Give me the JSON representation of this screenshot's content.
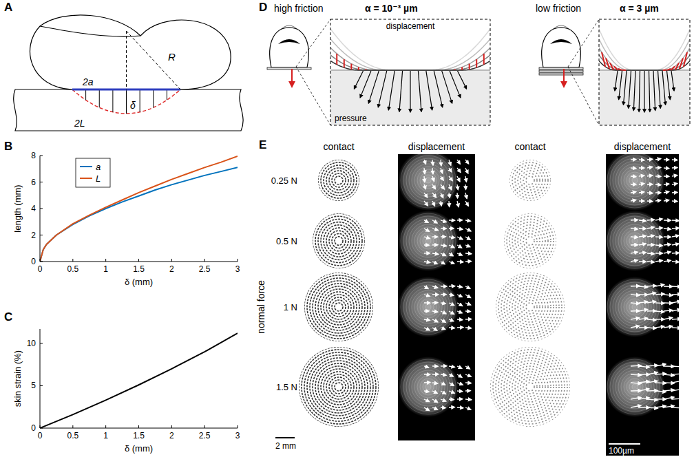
{
  "panels": {
    "letters": [
      "A",
      "B",
      "C",
      "D",
      "E"
    ],
    "A": {
      "contact_width": "2a",
      "indentation": "δ",
      "radius": "R",
      "arc_length": "2L"
    },
    "D": [
      {
        "title": "high friction",
        "alpha": "α = 10⁻³ µm",
        "displacement": "displacement",
        "pressure": "pressure"
      },
      {
        "title": "low friction",
        "alpha": "α = 3 µm"
      }
    ],
    "E": {
      "columns": [
        "contact",
        "displacement",
        "contact",
        "displacement"
      ],
      "rows": [
        "0.25 N",
        "0.5 N",
        "1 N",
        "1.5 N"
      ],
      "y_label": "normal force",
      "scale_bars": [
        "2 mm",
        "100µm"
      ]
    }
  },
  "chart_data": [
    {
      "type": "line",
      "x_label": "δ (mm)",
      "y_label": "length (mm)",
      "x": [
        0,
        0.05,
        0.1,
        0.25,
        0.5,
        0.75,
        1,
        1.25,
        1.5,
        1.75,
        2,
        2.25,
        2.5,
        2.75,
        3
      ],
      "series": [
        {
          "name": "a",
          "color": "#0072bd",
          "values": [
            0,
            0.9,
            1.3,
            2.0,
            2.8,
            3.45,
            4.0,
            4.5,
            4.95,
            5.4,
            5.8,
            6.15,
            6.5,
            6.8,
            7.1
          ]
        },
        {
          "name": "L",
          "color": "#d95319",
          "values": [
            0,
            0.9,
            1.3,
            2.0,
            2.85,
            3.5,
            4.1,
            4.65,
            5.2,
            5.7,
            6.2,
            6.65,
            7.1,
            7.5,
            7.95
          ]
        }
      ],
      "xlim": [
        0,
        3
      ],
      "ylim": [
        0,
        8
      ],
      "xticks": [
        0,
        0.5,
        1,
        1.5,
        2,
        2.5,
        3
      ],
      "yticks": [
        0,
        2,
        4,
        6,
        8
      ],
      "legend": "upper left",
      "grid": false
    },
    {
      "type": "line",
      "x_label": "δ (mm)",
      "y_label": "skin strain (%)",
      "x": [
        0,
        0.5,
        1,
        1.5,
        2,
        2.5,
        3
      ],
      "values": [
        0,
        1.6,
        3.3,
        5.1,
        7.0,
        9.0,
        11.2
      ],
      "color": "#000000",
      "xlim": [
        0,
        3
      ],
      "ylim": [
        0,
        11.7
      ],
      "xticks": [
        0,
        0.5,
        1,
        1.5,
        2,
        2.5,
        3
      ],
      "yticks": [
        0,
        5,
        10
      ],
      "grid": false
    }
  ]
}
